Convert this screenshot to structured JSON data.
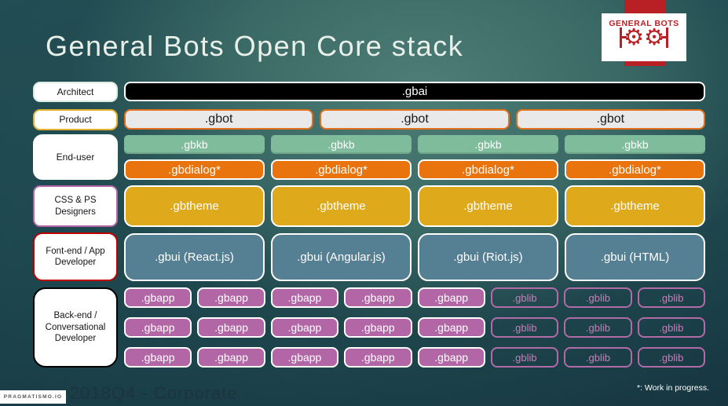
{
  "title": "General Bots Open Core stack",
  "logo": {
    "text": "GENERAL BOTS",
    "gear_glyph": "⚙"
  },
  "stack": {
    "labels": [
      {
        "text": "Architect"
      },
      {
        "text": "Product"
      },
      {
        "text": "End-user"
      },
      {
        "text": "CSS & PS Designers"
      },
      {
        "text": "Font-end / App Developer"
      },
      {
        "text": "Back-end / Conversational Developer"
      }
    ],
    "rows": {
      "gbai": [
        ".gbai"
      ],
      "gbot": [
        ".gbot",
        ".gbot",
        ".gbot"
      ],
      "gbkb": [
        ".gbkb",
        ".gbkb",
        ".gbkb",
        ".gbkb"
      ],
      "gbdialog": [
        ".gbdialog*",
        ".gbdialog*",
        ".gbdialog*",
        ".gbdialog*"
      ],
      "gbtheme": [
        ".gbtheme",
        ".gbtheme",
        ".gbtheme",
        ".gbtheme"
      ],
      "gbui": [
        ".gbui (React.js)",
        ".gbui (Angular.js)",
        ".gbui (Riot.js)",
        ".gbui (HTML)"
      ],
      "backend": [
        [
          ".gbapp",
          ".gbapp",
          ".gbapp",
          ".gbapp",
          ".gbapp",
          ".gblib",
          ".gblib",
          ".gblib"
        ],
        [
          ".gbapp",
          ".gbapp",
          ".gbapp",
          ".gbapp",
          ".gbapp",
          ".gblib",
          ".gblib",
          ".gblib"
        ],
        [
          ".gbapp",
          ".gbapp",
          ".gbapp",
          ".gbapp",
          ".gbapp",
          ".gblib",
          ".gblib",
          ".gblib"
        ]
      ]
    }
  },
  "footer": {
    "brand": "PRAGMATISMO.IO",
    "caption": "2018Q4 - Corporate",
    "note": "*: Work in progress."
  },
  "colors": {
    "background_center": "#4e7d76",
    "background_edge": "#132f3c",
    "gbai_fill": "#000000",
    "gbot_fill": "#e9e9e9",
    "gbot_border": "#e2711d",
    "gbkb_fill": "#7fbc9b",
    "gbdialog_fill": "#e9730c",
    "gbtheme_fill": "#dfa91c",
    "gbui_fill": "#557f93",
    "gbapp_fill": "#b266a6",
    "gblib_accent": "#b16ba7",
    "logo_red": "#b82025",
    "label_product_border": "#e3b02e",
    "label_css_border": "#b565a5",
    "label_frontend_border": "#c00000",
    "label_backend_border": "#000000"
  }
}
